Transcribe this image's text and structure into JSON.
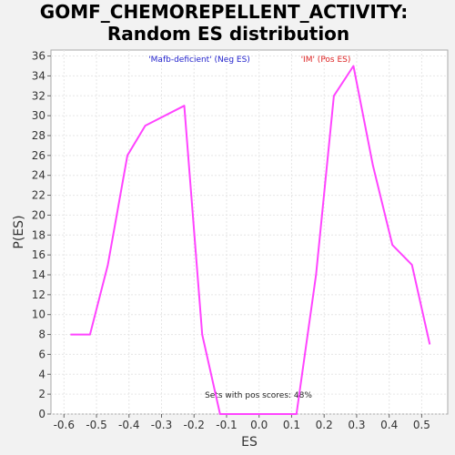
{
  "chart_data": {
    "type": "line",
    "title_line1": "GOMF_CHEMOREPELLENT_ACTIVITY:",
    "title_line2": "Random ES distribution",
    "xlabel": "ES",
    "ylabel": "P(ES)",
    "xlim": [
      -0.64,
      0.58
    ],
    "ylim": [
      0,
      36.6
    ],
    "x_ticks": [
      -0.6,
      -0.5,
      -0.4,
      -0.3,
      -0.2,
      -0.1,
      0.0,
      0.1,
      0.2,
      0.3,
      0.4,
      0.5
    ],
    "x_tick_labels": [
      "-0.6",
      "-0.5",
      "-0.4",
      "-0.3",
      "-0.2",
      "-0.1",
      "0.0",
      "0.1",
      "0.2",
      "0.3",
      "0.4",
      "0.5"
    ],
    "y_ticks": [
      0,
      2,
      4,
      6,
      8,
      10,
      12,
      14,
      16,
      18,
      20,
      22,
      24,
      26,
      28,
      30,
      32,
      34,
      36
    ],
    "grid": true,
    "series": [
      {
        "color": "#ff44ff",
        "x": [
          -0.58,
          -0.52,
          -0.465,
          -0.405,
          -0.35,
          -0.23,
          -0.175,
          -0.12,
          -0.06,
          0.0,
          0.06,
          0.115,
          0.175,
          0.23,
          0.29,
          0.35,
          0.41,
          0.47,
          0.525
        ],
        "y": [
          8,
          8,
          15,
          26,
          29,
          31,
          8,
          0,
          0,
          0,
          0,
          0,
          14,
          32,
          35,
          25,
          17,
          15,
          7
        ]
      }
    ],
    "annotations": {
      "neg_label": "'Mafb-deficient' (Neg ES)",
      "neg_color": "#2222cc",
      "pos_label": "'IM' (Pos ES)",
      "pos_color": "#dd2222",
      "bottom_note": "Sets with pos scores: 48%"
    }
  }
}
